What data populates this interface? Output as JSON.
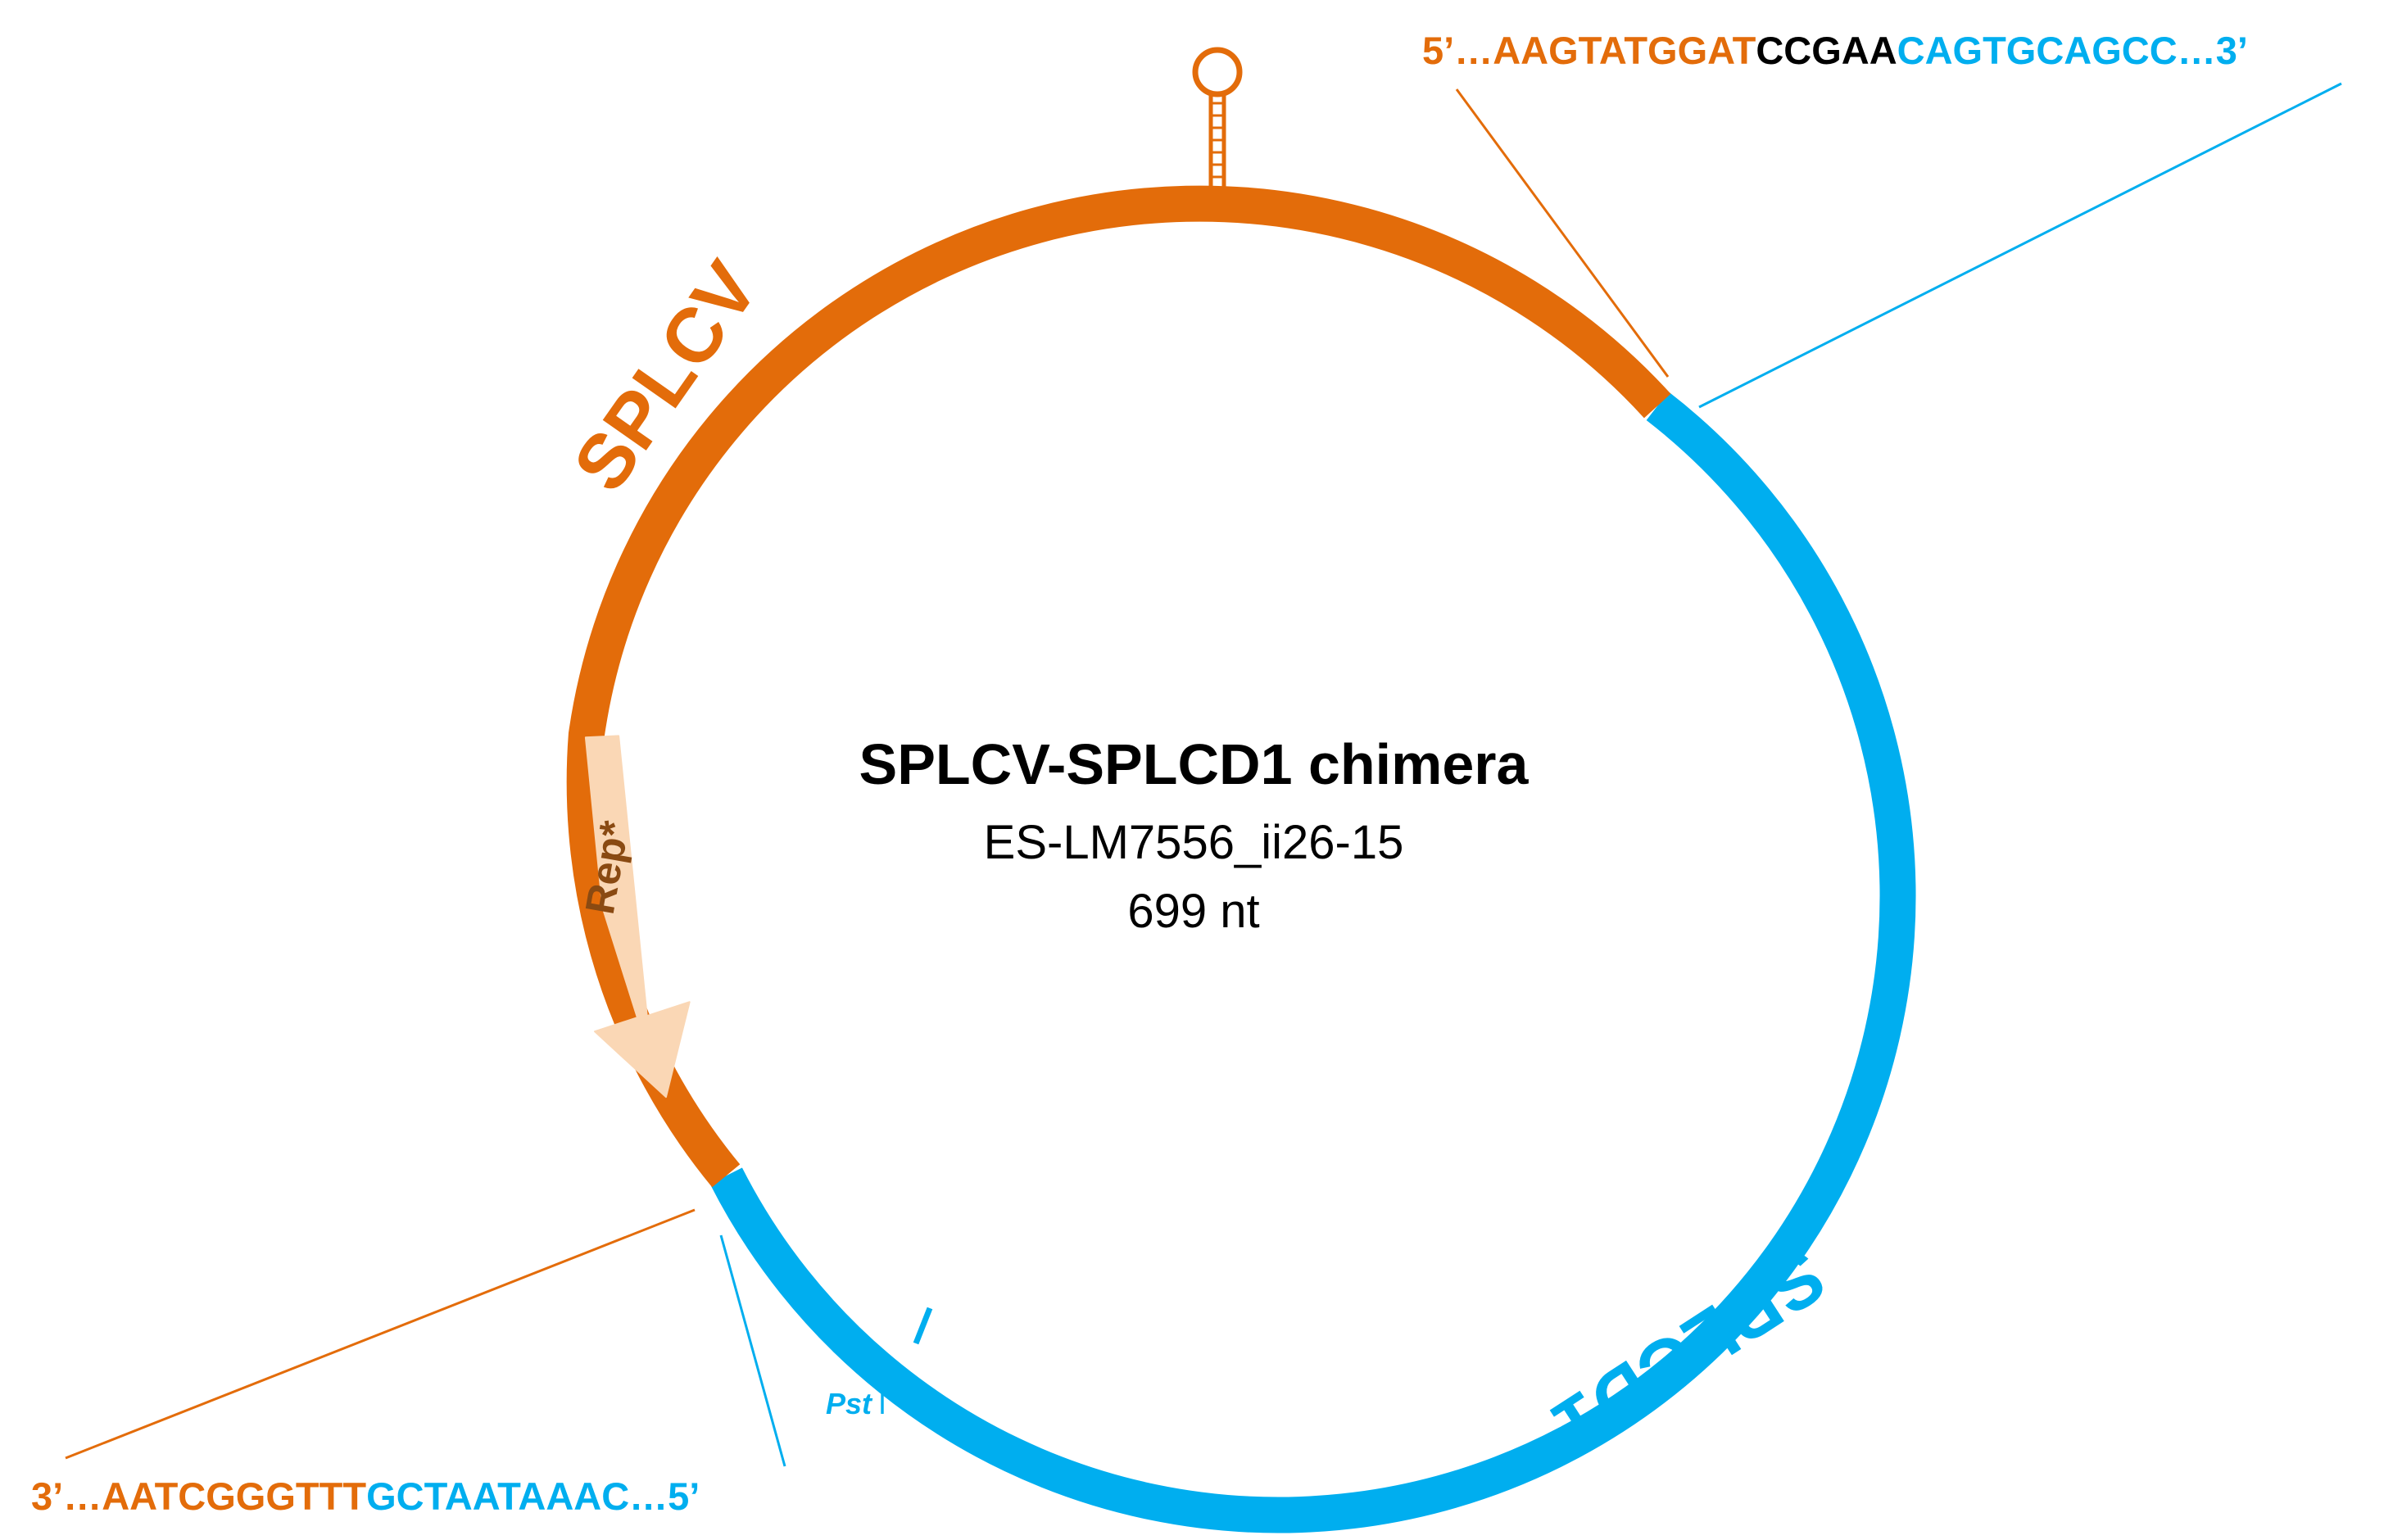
{
  "center": {
    "title": "SPLCV-SPLCD1 chimera",
    "isolate": "ES-LM7556_ii26-15",
    "length": "699 nt"
  },
  "segments": {
    "splcv_label": "SPLCV",
    "splcd1_label": "SPLCD1"
  },
  "feature": {
    "rep_label": "Rep*"
  },
  "site": {
    "name": "Pst",
    "suffix": "I"
  },
  "junction_top": {
    "prefix": "5’…",
    "part1": "AAGTATGGAT",
    "part2": "CCGAA",
    "part3": "CAGTGCAGCC",
    "suffix": "…3’"
  },
  "junction_bottom": {
    "prefix": "3’…",
    "part1": "AATCGGGTTT",
    "part2": "GCTAATAAAC",
    "suffix": "…5’"
  },
  "colors": {
    "splcv": "#E36C0A",
    "splcd1": "#00AEEF",
    "rep": "#FAD7B5",
    "rep_text": "#8A4A12",
    "text": "#000000"
  }
}
